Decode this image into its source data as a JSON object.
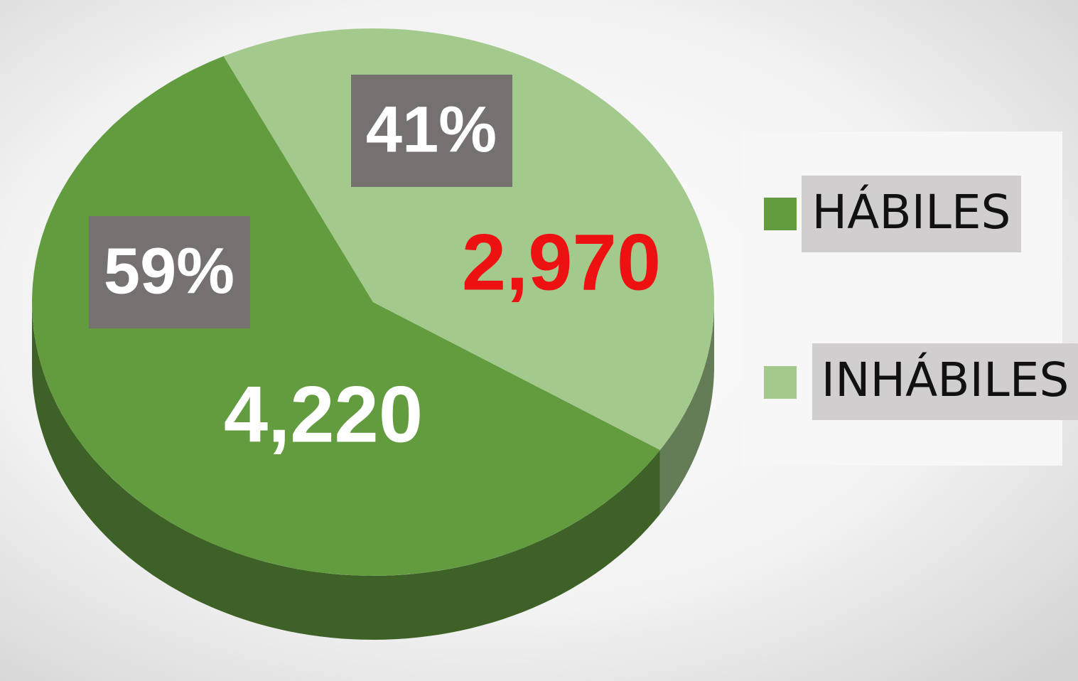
{
  "chart_data": {
    "type": "pie",
    "categories": [
      "HÁBILES",
      "INHÁBILES"
    ],
    "values": [
      4220,
      2970
    ],
    "value_labels": [
      "4,220",
      "2,970"
    ],
    "percentages": [
      59,
      41
    ],
    "percentage_labels": [
      "59%",
      "41%"
    ],
    "colors": [
      "#629c3e",
      "#a3c98d"
    ],
    "value_label_colors": [
      "#ffffff",
      "#ee1111"
    ],
    "legend": "right"
  }
}
